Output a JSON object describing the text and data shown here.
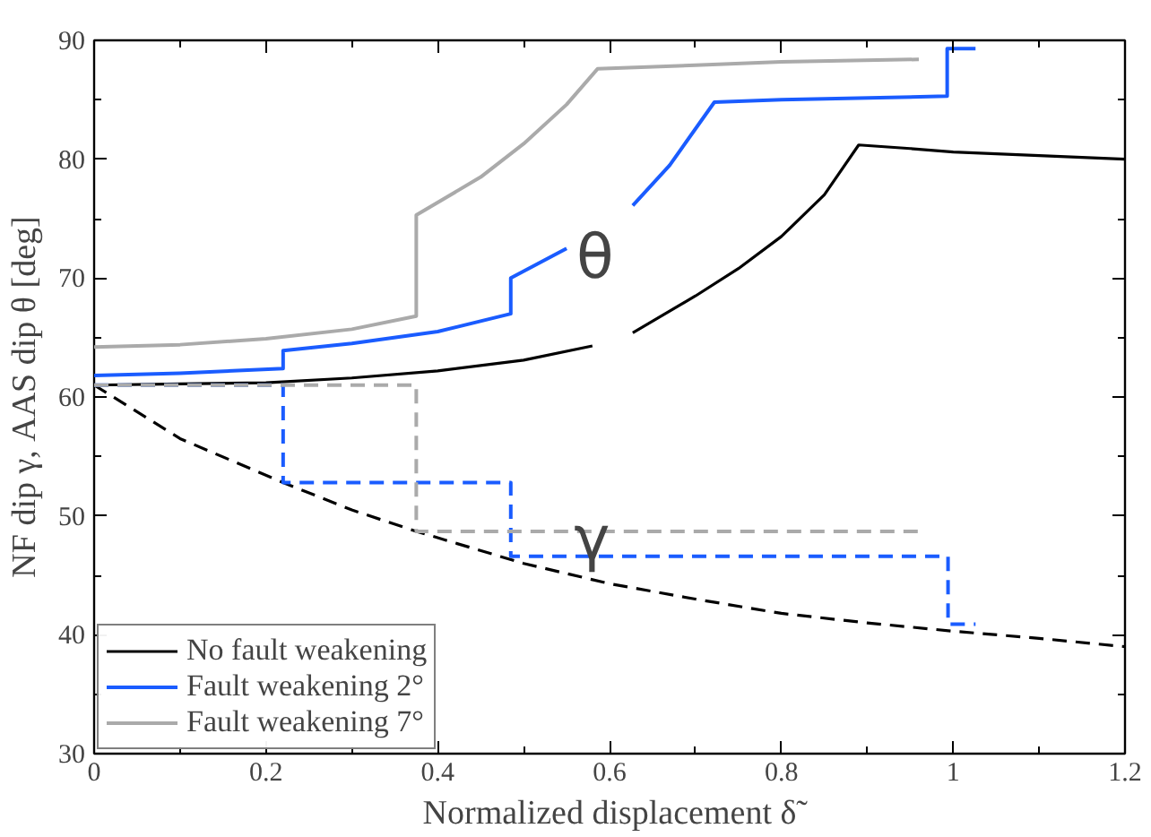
{
  "chart_data": {
    "type": "line",
    "xlabel": "Normalized displacement δ̃",
    "ylabel": "NF dip γ, AAS dip θ [deg]",
    "xlim": [
      0,
      1.2
    ],
    "ylim": [
      30,
      90
    ],
    "xticks": [
      {
        "value": 0,
        "label": "0"
      },
      0.2,
      0.4,
      0.6,
      0.8,
      1,
      1.2
    ],
    "yticks": [
      30,
      40,
      50,
      60,
      70,
      80,
      90
    ],
    "grid": false,
    "legend": "bottom left",
    "annotations": [
      "θ",
      "γ"
    ],
    "series": [
      {
        "name": "No fault weakening",
        "color": "#000000",
        "line_style": "solid",
        "x": [
          0,
          0.1,
          0.2,
          0.3,
          0.4,
          0.5,
          0.58,
          0.6,
          0.627,
          0.7,
          0.75,
          0.8,
          0.85,
          0.89,
          0.95,
          1.0,
          1.1,
          1.2
        ],
        "values": [
          61,
          61.1,
          61.2,
          61.6,
          62.2,
          63.1,
          64.3,
          null,
          65.4,
          68.5,
          70.8,
          73.5,
          77,
          81.2,
          80.9,
          80.6,
          80.3,
          80
        ]
      },
      {
        "color": "#000000",
        "line_style": "dashed",
        "x": [
          0,
          0.1,
          0.22,
          0.3,
          0.375,
          0.5,
          0.6,
          0.7,
          0.8,
          0.9,
          1.0,
          1.1,
          1.2
        ],
        "values": [
          61,
          56.5,
          52.8,
          50.5,
          48.7,
          46,
          44.3,
          43,
          41.8,
          41,
          40.3,
          39.7,
          39
        ]
      },
      {
        "name": "Fault weakening 2°",
        "color": "#1a5cff",
        "line_style": "solid",
        "x": [
          0,
          0.1,
          0.22,
          0.22,
          0.3,
          0.4,
          0.485,
          0.485,
          0.55,
          0.6,
          0.627,
          0.67,
          0.722,
          0.8,
          0.993,
          0.993,
          1.026
        ],
        "values": [
          61.8,
          62,
          62.4,
          63.9,
          64.5,
          65.5,
          67,
          70,
          72.5,
          null,
          76.1,
          79.5,
          84.8,
          85,
          85.3,
          89.3,
          89.3
        ]
      },
      {
        "color": "#1a5cff",
        "line_style": "dashed",
        "x": [
          0,
          0.22,
          0.22,
          0.485,
          0.485,
          0.994,
          0.994,
          1.026
        ],
        "values": [
          61,
          61,
          52.8,
          52.8,
          46.6,
          46.6,
          40.9,
          40.9
        ]
      },
      {
        "name": "Fault weakening 7°",
        "color": "#aaaaaa",
        "line_style": "solid",
        "x": [
          0,
          0.1,
          0.2,
          0.3,
          0.375,
          0.375,
          0.45,
          0.5,
          0.55,
          0.586,
          0.7,
          0.8,
          0.96
        ],
        "values": [
          64.2,
          64.4,
          64.9,
          65.7,
          66.8,
          75.3,
          78.5,
          81.3,
          84.6,
          87.6,
          87.9,
          88.2,
          88.4
        ]
      },
      {
        "color": "#aaaaaa",
        "line_style": "dashed",
        "x": [
          0,
          0.375,
          0.375,
          0.961
        ],
        "values": [
          61,
          61,
          48.7,
          48.7
        ]
      }
    ]
  }
}
